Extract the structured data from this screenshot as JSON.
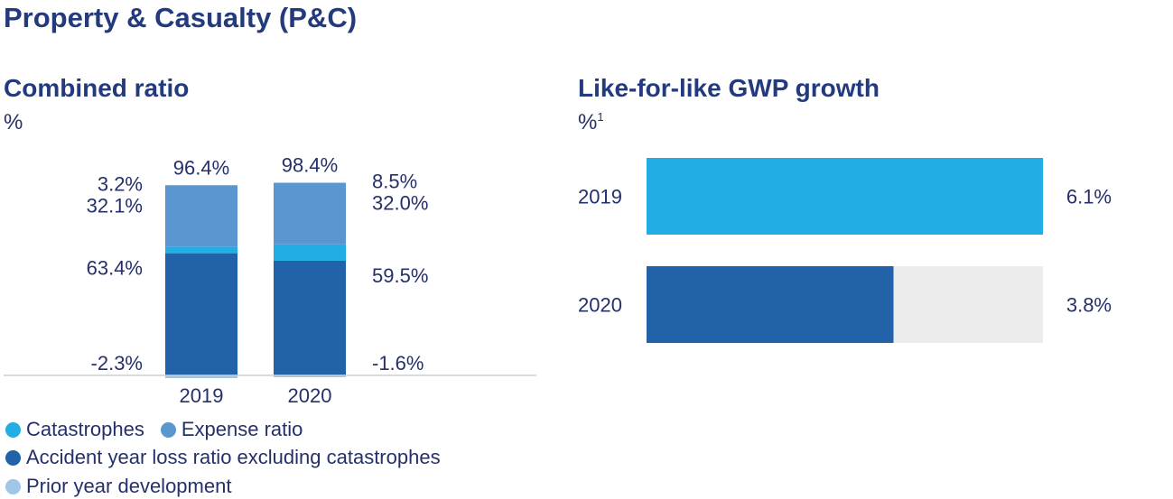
{
  "page_title": "Property & Casualty (P&C)",
  "colors": {
    "catastrophes": "#22aee4",
    "expense_ratio": "#5a96cf",
    "accident_year": "#2262a8",
    "prior_year": "#9fc6e6",
    "bar_2019": "#22aee4",
    "bar_2020": "#2262a8",
    "track": "#ececec",
    "text": "#25306b"
  },
  "chart_data": [
    {
      "type": "bar",
      "stacked": true,
      "title": "Combined ratio",
      "unit": "%",
      "categories": [
        "2019",
        "2020"
      ],
      "totals": [
        "96.4%",
        "98.4%"
      ],
      "series": [
        {
          "key": "prior_year",
          "name": "Prior year development",
          "values": [
            -2.3,
            -1.6
          ],
          "labels": [
            "-2.3%",
            "-1.6%"
          ]
        },
        {
          "key": "accident_year",
          "name": "Accident year loss ratio excluding catastrophes",
          "values": [
            63.4,
            59.5
          ],
          "labels": [
            "63.4%",
            "59.5%"
          ]
        },
        {
          "key": "catastrophes",
          "name": "Catastrophes",
          "values": [
            3.2,
            8.5
          ],
          "labels": [
            "3.2%",
            "8.5%"
          ]
        },
        {
          "key": "expense_ratio",
          "name": "Expense ratio",
          "values": [
            32.1,
            32.0
          ],
          "labels": [
            "32.1%",
            "32.0%"
          ]
        }
      ],
      "legend": [
        "Catastrophes",
        "Expense ratio",
        "Accident year loss ratio excluding catastrophes",
        "Prior year development"
      ]
    },
    {
      "type": "bar",
      "orientation": "horizontal",
      "title": "Like-for-like GWP growth",
      "unit": "%",
      "unit_superscript": "1",
      "categories": [
        "2019",
        "2020"
      ],
      "values": [
        6.1,
        3.8
      ],
      "labels": [
        "6.1%",
        "3.8%"
      ],
      "xlim": [
        0,
        6.1
      ]
    }
  ]
}
